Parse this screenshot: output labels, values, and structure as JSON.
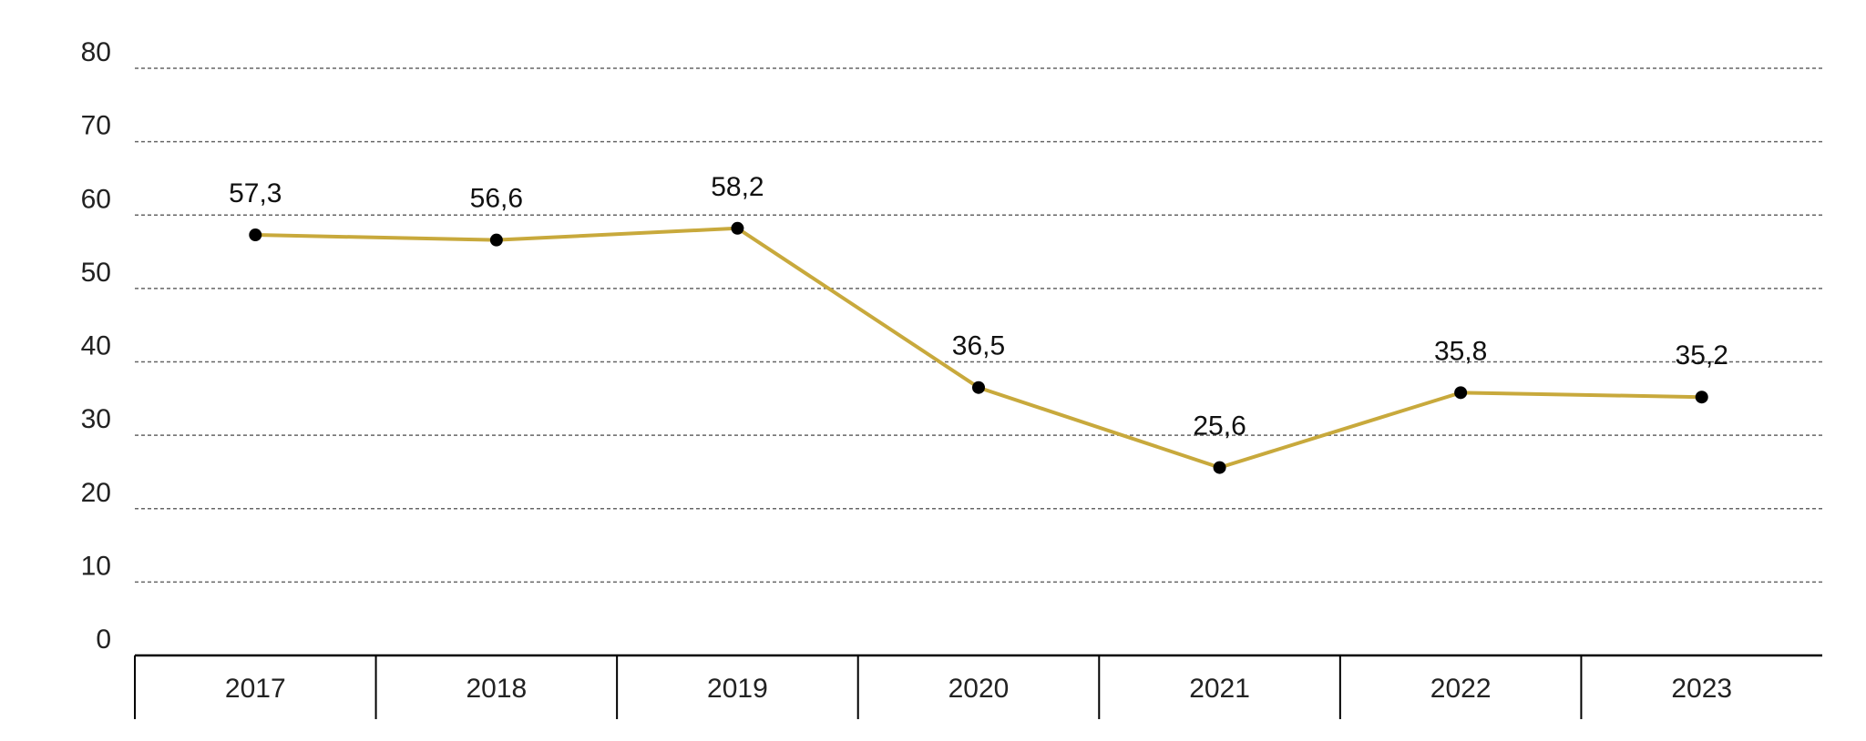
{
  "chart_data": {
    "type": "line",
    "categories": [
      "2017",
      "2018",
      "2019",
      "2020",
      "2021",
      "2022",
      "2023"
    ],
    "series": [
      {
        "values": [
          57.3,
          56.6,
          58.2,
          36.5,
          25.6,
          35.8,
          35.2
        ],
        "value_labels": [
          "57,3",
          "56,6",
          "58,2",
          "36,5",
          "25,6",
          "35,8",
          "35,2"
        ],
        "color": "#c8a93c"
      }
    ],
    "ylim": [
      0,
      80
    ],
    "yticks": [
      0,
      10,
      20,
      30,
      40,
      50,
      60,
      70,
      80
    ],
    "grid": true,
    "grid_style": "dashed",
    "marker_color": "#000000",
    "axis_color": "#000000"
  }
}
